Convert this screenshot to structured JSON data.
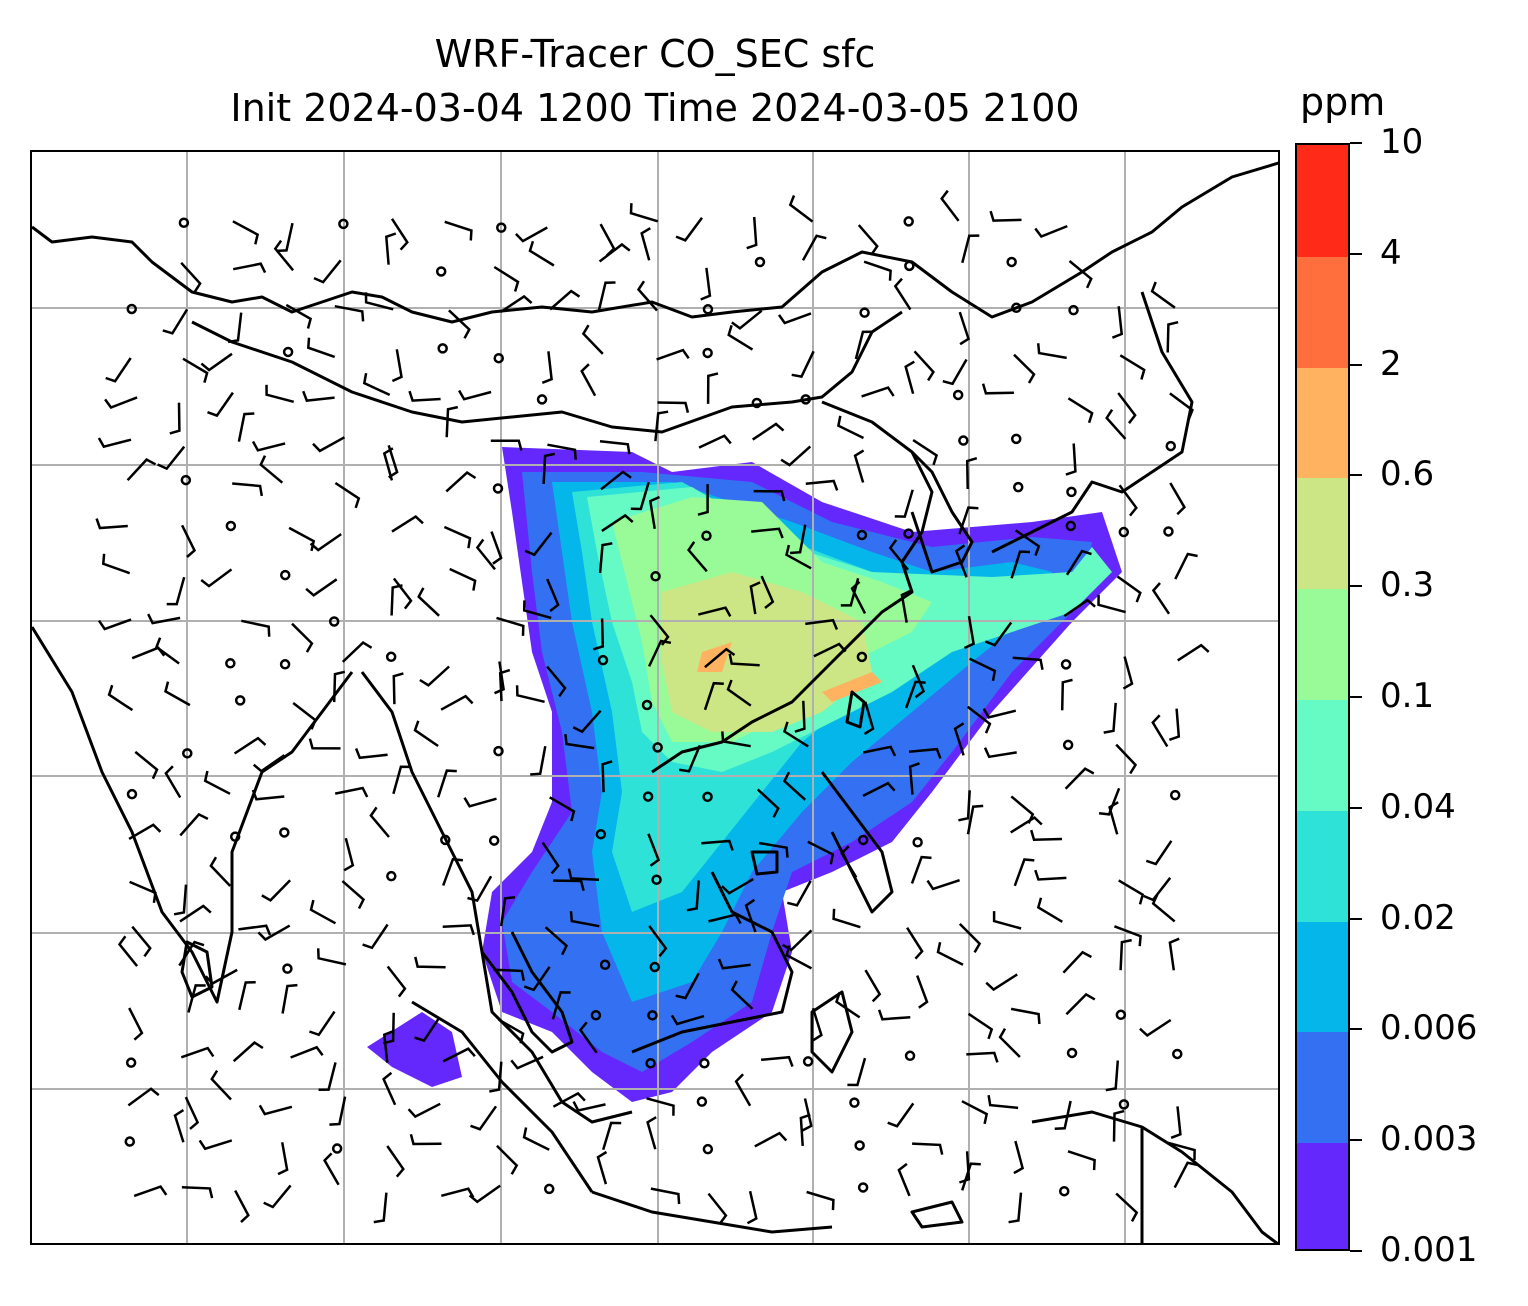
{
  "title": {
    "line1": "WRF-Tracer CO_SEC sfc",
    "line2": "Init 2024-03-04 1200 Time 2024-03-05 2100"
  },
  "colorbar": {
    "unit": "ppm",
    "levels": [
      "0.001",
      "0.003",
      "0.006",
      "0.02",
      "0.04",
      "0.1",
      "0.3",
      "0.6",
      "2",
      "4",
      "10"
    ],
    "colors": [
      "#6428fc",
      "#3371f2",
      "#04b6ea",
      "#2ee2d8",
      "#66fac5",
      "#98fb98",
      "#cce685",
      "#ffb260",
      "#ff6e3d",
      "#ff2a17"
    ]
  },
  "map": {
    "variable": "CO_SEC",
    "level": "sfc",
    "gridlines": true,
    "overlay": "wind-barbs"
  }
}
